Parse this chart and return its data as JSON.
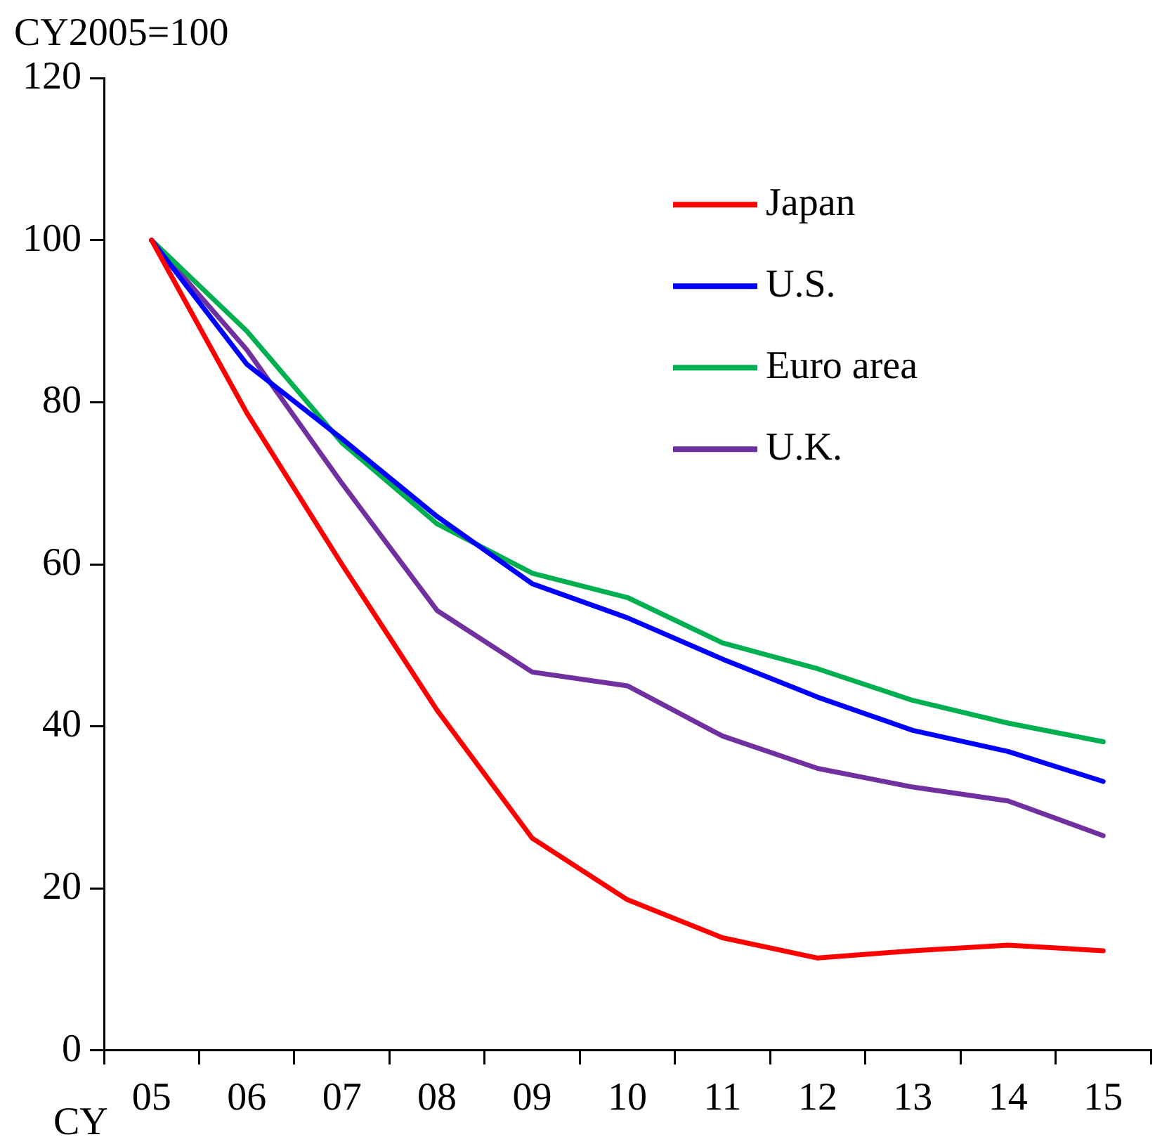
{
  "chart_data": {
    "type": "line",
    "title": "CY2005=100",
    "xlabel": "CY",
    "categories": [
      "05",
      "06",
      "07",
      "08",
      "09",
      "10",
      "11",
      "12",
      "13",
      "14",
      "15"
    ],
    "series": [
      {
        "name": "Japan",
        "color": "#ff0000",
        "values": [
          100,
          78.7,
          60,
          42,
          26.2,
          18.6,
          13.9,
          11.4,
          12.3,
          13,
          12.3
        ]
      },
      {
        "name": "U.S.",
        "color": "#0000ff",
        "values": [
          100,
          84.7,
          75.5,
          65.9,
          57.6,
          53.4,
          48.3,
          43.6,
          39.5,
          36.9,
          33.2
        ]
      },
      {
        "name": "Euro area",
        "color": "#00b050",
        "values": [
          100,
          88.8,
          75,
          65,
          58.9,
          55.9,
          50.3,
          47.1,
          43.2,
          40.4,
          38.1
        ]
      },
      {
        "name": "U.K.",
        "color": "#7030a0",
        "values": [
          100,
          86.5,
          70,
          54.3,
          46.7,
          45,
          38.8,
          34.8,
          32.5,
          30.8,
          26.5
        ]
      }
    ],
    "ylim": [
      0,
      120
    ],
    "yticks": [
      0,
      20,
      40,
      60,
      80,
      100,
      120
    ],
    "grid": false,
    "legend": "top right",
    "marker": "none",
    "line_style": "solid"
  }
}
